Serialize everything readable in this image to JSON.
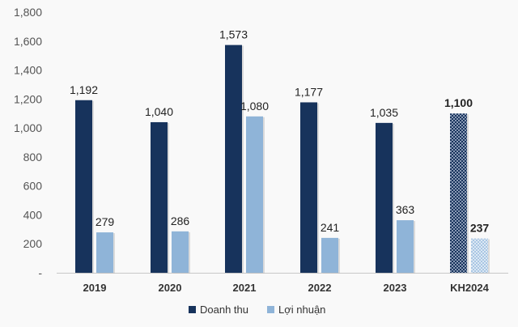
{
  "chart_data": {
    "type": "bar",
    "title": "",
    "xlabel": "",
    "ylabel": "",
    "ylim": [
      0,
      1800
    ],
    "yticks": [
      "-",
      "200",
      "400",
      "600",
      "800",
      "1,000",
      "1,200",
      "1,400",
      "1,600",
      "1,800"
    ],
    "grid": false,
    "legend_position": "bottom",
    "categories": [
      "2019",
      "2020",
      "2021",
      "2022",
      "2023",
      "KH2024"
    ],
    "series": [
      {
        "name": "Doanh thu",
        "color": "#17335c",
        "values": [
          1192,
          1040,
          1573,
          1177,
          1035,
          1100
        ],
        "labels": [
          "1,192",
          "1,040",
          "1,573",
          "1,177",
          "1,035",
          "1,100"
        ]
      },
      {
        "name": "Lợi nhuận",
        "color": "#8fb4d8",
        "values": [
          279,
          286,
          1080,
          241,
          363,
          237
        ],
        "labels": [
          "279",
          "286",
          "1,080",
          "241",
          "363",
          "237"
        ]
      }
    ],
    "note_pattern": "last category (KH2024) drawn with hatched/dotted pattern fill and bold labels"
  }
}
